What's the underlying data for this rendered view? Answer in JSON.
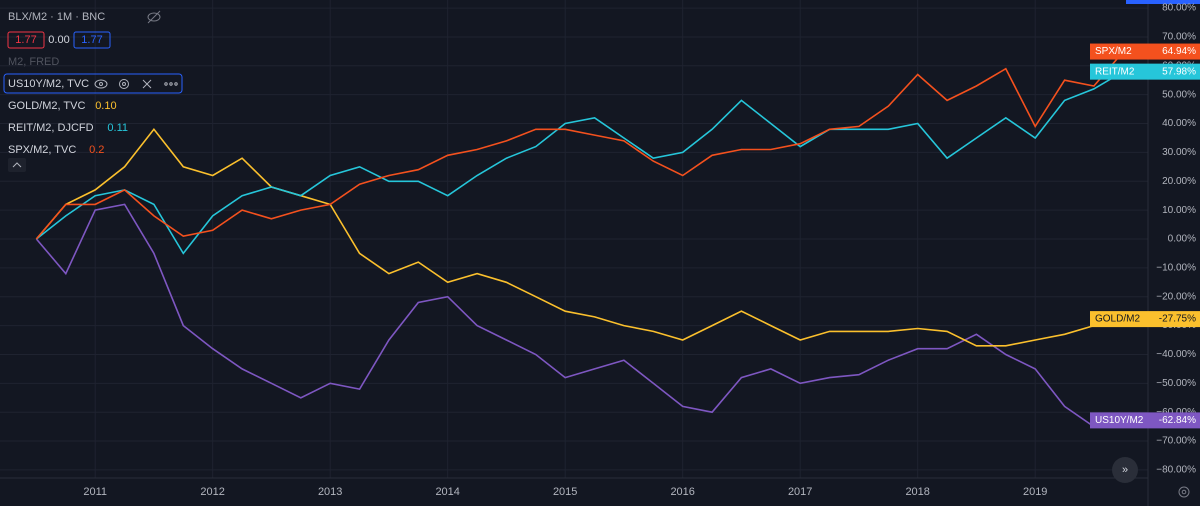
{
  "chart_data": {
    "type": "line",
    "legend_header": {
      "title": "BLX/M2 · 1M · BNC",
      "values": [
        "1.77",
        "0.00",
        "1.77"
      ]
    },
    "hidden_series": "M2, FRED",
    "x": [
      2010.5,
      2010.75,
      2011,
      2011.25,
      2011.5,
      2011.75,
      2012,
      2012.25,
      2012.5,
      2012.75,
      2013,
      2013.25,
      2013.5,
      2013.75,
      2014,
      2014.25,
      2014.5,
      2014.75,
      2015,
      2015.25,
      2015.5,
      2015.75,
      2016,
      2016.25,
      2016.5,
      2016.75,
      2017,
      2017.25,
      2017.5,
      2017.75,
      2018,
      2018.25,
      2018.5,
      2018.75,
      2019,
      2019.25,
      2019.5,
      2019.75
    ],
    "series": [
      {
        "name": "US10Y/M2",
        "source": "US10Y/M2, TVC",
        "color": "#7e57c2",
        "end_label": "-62.84%",
        "values": [
          0,
          -12,
          10,
          12,
          -5,
          -30,
          -38,
          -45,
          -50,
          -55,
          -50,
          -52,
          -35,
          -22,
          -20,
          -30,
          -35,
          -40,
          -48,
          -45,
          -42,
          -50,
          -58,
          -60,
          -48,
          -45,
          -50,
          -48,
          -47,
          -42,
          -38,
          -38,
          -33,
          -40,
          -45,
          -58,
          -65,
          -62.84
        ]
      },
      {
        "name": "GOLD/M2",
        "source": "GOLD/M2, TVC",
        "legend_value": "0.10",
        "color": "#fbc02d",
        "end_label": "-27.75%",
        "values": [
          0,
          12,
          17,
          25,
          38,
          25,
          22,
          28,
          18,
          15,
          12,
          -5,
          -12,
          -8,
          -15,
          -12,
          -15,
          -20,
          -25,
          -27,
          -30,
          -32,
          -35,
          -30,
          -25,
          -30,
          -35,
          -32,
          -32,
          -32,
          -31,
          -32,
          -37,
          -37,
          -35,
          -33,
          -30,
          -27.75
        ]
      },
      {
        "name": "REIT/M2",
        "source": "REIT/M2, DJCFD",
        "legend_value": "0.11",
        "color": "#26c6da",
        "end_label": "57.98%",
        "values": [
          0,
          8,
          15,
          17,
          12,
          -5,
          8,
          15,
          18,
          15,
          22,
          25,
          20,
          20,
          15,
          22,
          28,
          32,
          40,
          42,
          35,
          28,
          30,
          38,
          48,
          40,
          32,
          38,
          38,
          38,
          40,
          28,
          35,
          42,
          35,
          48,
          52,
          57.98
        ]
      },
      {
        "name": "SPX/M2",
        "source": "SPX/M2, TVC",
        "legend_value": "0.2",
        "color": "#f4511e",
        "end_label": "64.94%",
        "values": [
          0,
          12,
          12,
          17,
          8,
          1,
          3,
          10,
          7,
          10,
          12,
          19,
          22,
          24,
          29,
          31,
          34,
          38,
          38,
          36,
          34,
          27,
          22,
          29,
          31,
          31,
          33,
          38,
          39,
          46,
          57,
          48,
          53,
          59,
          39,
          55,
          53,
          64.94
        ]
      }
    ],
    "xlim": [
      2010.19,
      2019.96
    ],
    "xticks": [
      2011,
      2012,
      2013,
      2014,
      2015,
      2016,
      2017,
      2018,
      2019
    ],
    "ylim": [
      -82.8,
      82.8
    ],
    "yticks": [
      {
        "value": 80,
        "label": "80.00%"
      },
      {
        "value": 70,
        "label": "70.00%"
      },
      {
        "value": 60,
        "label": "60.00%"
      },
      {
        "value": 50,
        "label": "50.00%"
      },
      {
        "value": 40,
        "label": "40.00%"
      },
      {
        "value": 30,
        "label": "30.00%"
      },
      {
        "value": 20,
        "label": "20.00%"
      },
      {
        "value": 10,
        "label": "10.00%"
      },
      {
        "value": 0,
        "label": "0.00%"
      },
      {
        "value": -10,
        "label": "−10.00%"
      },
      {
        "value": -20,
        "label": "−20.00%"
      },
      {
        "value": -30,
        "label": "−30.00%"
      },
      {
        "value": -40,
        "label": "−40.00%"
      },
      {
        "value": -50,
        "label": "−50.00%"
      },
      {
        "value": -60,
        "label": "−60.00%"
      },
      {
        "value": -70,
        "label": "−70.00%"
      },
      {
        "value": -80,
        "label": "−80.00%"
      }
    ],
    "grid": true
  }
}
